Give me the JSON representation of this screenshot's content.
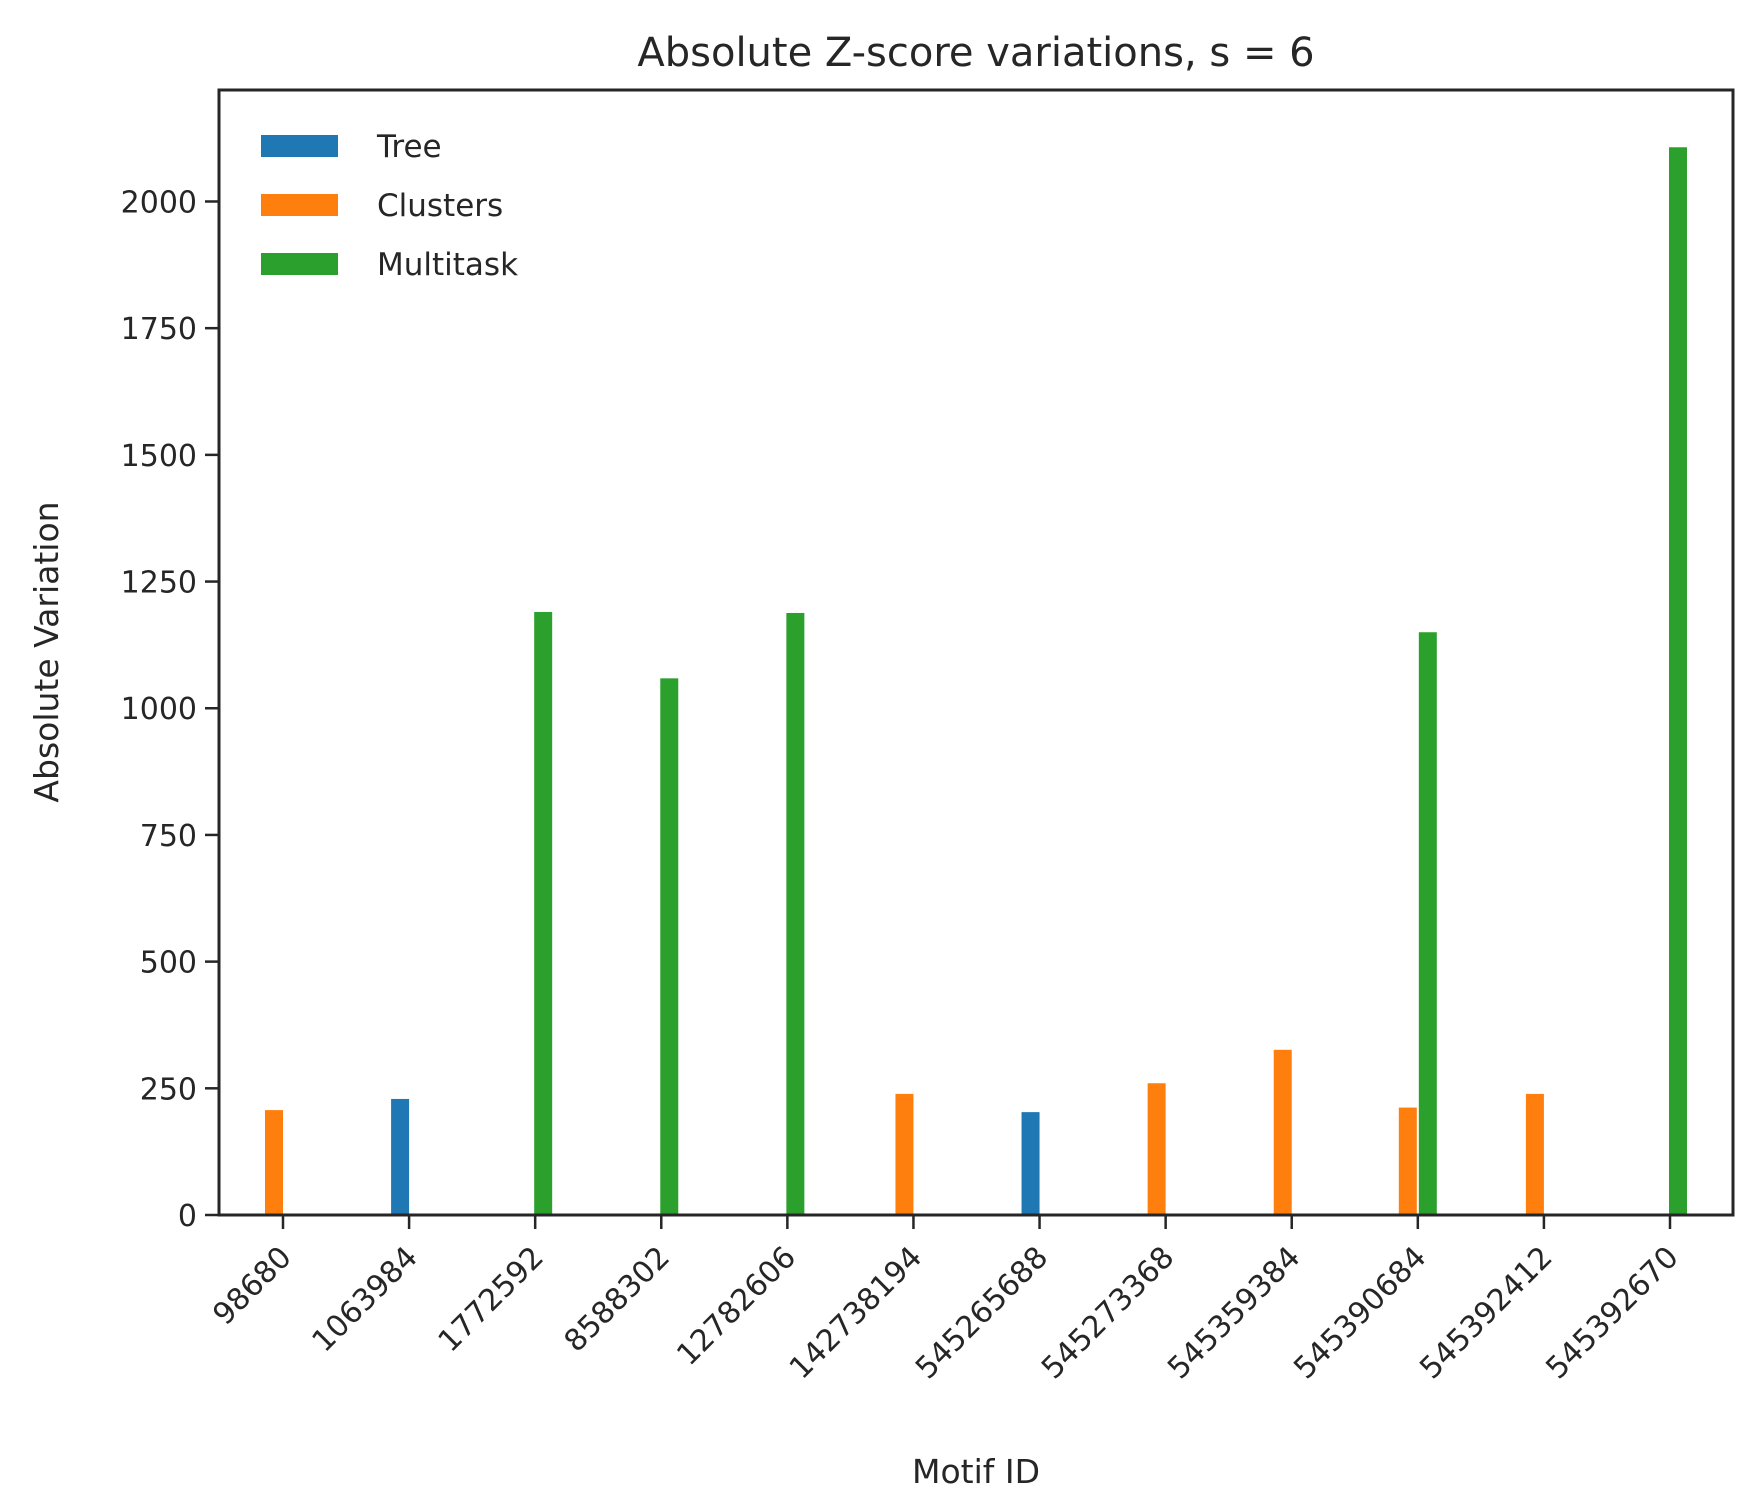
{
  "chart_data": {
    "type": "bar",
    "title": "Absolute Z-score variations, s = 6",
    "xlabel": "Motif ID",
    "ylabel": "Absolute Variation",
    "categories": [
      "98680",
      "1063984",
      "1772592",
      "8588302",
      "12782606",
      "142738194",
      "545265688",
      "545273368",
      "545359384",
      "545390684",
      "545392412",
      "545392670"
    ],
    "ylim": [
      0,
      2220
    ],
    "yticks": [
      "0",
      "250",
      "500",
      "750",
      "1000",
      "1250",
      "1500",
      "1750",
      "2000"
    ],
    "grid": false,
    "legend_position": "top-left",
    "series": [
      {
        "name": "Tree",
        "color": "#1f77b4",
        "values": [
          0,
          229,
          0,
          0,
          0,
          0,
          203,
          0,
          0,
          0,
          0,
          0
        ]
      },
      {
        "name": "Clusters",
        "color": "#ff7f0e",
        "values": [
          207,
          0,
          0,
          0,
          0,
          239,
          0,
          260,
          326,
          212,
          239,
          0
        ]
      },
      {
        "name": "Multitask",
        "color": "#2ca02c",
        "values": [
          0,
          0,
          1190,
          1059,
          1188,
          0,
          0,
          0,
          0,
          1150,
          0,
          2107
        ]
      }
    ]
  }
}
